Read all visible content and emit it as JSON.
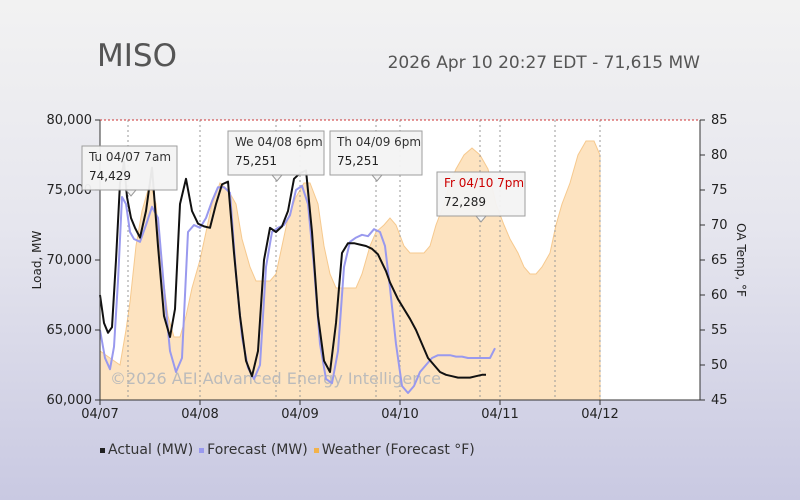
{
  "header": {
    "title": "MISO",
    "timestamp": "2026 Apr 10 20:27 EDT - 71,615 MW"
  },
  "colors": {
    "actual": "#111111",
    "forecast": "#9999ee",
    "weather_fill": "#fde3c0",
    "weather_line": "#f6c98e",
    "legend_actual": "#222222",
    "legend_forecast": "#9999ee",
    "legend_weather": "#f2b24a",
    "tooltip_red": "#cc0000"
  },
  "chart_data": {
    "type": "line",
    "xlabel": "",
    "ylabel": "Load, MW",
    "y2label": "OA Temp, °F",
    "xlim_days": [
      0,
      6
    ],
    "ylim": [
      60000,
      80000
    ],
    "y2lim": [
      45,
      85
    ],
    "x_ticks": [
      "04/07",
      "04/08",
      "04/09",
      "04/10",
      "04/11",
      "04/12"
    ],
    "y_ticks": [
      "60,000",
      "65,000",
      "70,000",
      "75,000",
      "80,000"
    ],
    "y2_ticks": [
      "45",
      "50",
      "55",
      "60",
      "65",
      "70",
      "75",
      "80",
      "85"
    ],
    "grid": "dashed vertical",
    "watermark": "©2026 AEI Advanced Energy Intelligence",
    "series": [
      {
        "name": "Actual (MW)",
        "x": [
          0,
          0.04,
          0.08,
          0.12,
          0.16,
          0.2,
          0.24,
          0.27,
          0.31,
          0.35,
          0.4,
          0.46,
          0.52,
          0.58,
          0.64,
          0.7,
          0.75,
          0.8,
          0.86,
          0.92,
          0.98,
          1.04,
          1.1,
          1.16,
          1.22,
          1.28,
          1.34,
          1.4,
          1.46,
          1.52,
          1.58,
          1.64,
          1.7,
          1.76,
          1.82,
          1.88,
          1.94,
          2.0,
          2.06,
          2.12,
          2.18,
          2.24,
          2.3,
          2.36,
          2.42,
          2.48,
          2.54,
          2.6,
          2.66,
          2.72,
          2.78,
          2.82,
          2.86,
          2.9,
          2.94,
          2.98,
          3.04,
          3.1,
          3.16,
          3.22,
          3.28,
          3.34,
          3.4,
          3.46,
          3.52,
          3.58,
          3.64,
          3.7,
          3.76,
          3.82,
          3.86
        ],
        "values": [
          67500,
          65500,
          64800,
          65200,
          70000,
          75500,
          77000,
          74500,
          73000,
          72300,
          71600,
          73500,
          76600,
          71000,
          66000,
          64500,
          66500,
          74000,
          75800,
          73500,
          72600,
          72400,
          72300,
          74000,
          75400,
          75600,
          70500,
          66000,
          62800,
          61700,
          63500,
          70000,
          72300,
          72000,
          72400,
          73500,
          75800,
          76200,
          76400,
          72000,
          66000,
          62800,
          62000,
          65500,
          70500,
          71200,
          71200,
          71100,
          71000,
          70800,
          70400,
          69800,
          69200,
          68400,
          67800,
          67200,
          66500,
          65800,
          65000,
          64000,
          63000,
          62500,
          62000,
          61800,
          61700,
          61600,
          61600,
          61600,
          61700,
          61800,
          61800
        ]
      },
      {
        "name": "Forecast (MW)",
        "x": [
          0,
          0.05,
          0.1,
          0.14,
          0.18,
          0.22,
          0.26,
          0.3,
          0.34,
          0.4,
          0.46,
          0.52,
          0.58,
          0.64,
          0.7,
          0.76,
          0.82,
          0.88,
          0.94,
          1.0,
          1.06,
          1.12,
          1.18,
          1.24,
          1.3,
          1.36,
          1.42,
          1.48,
          1.54,
          1.6,
          1.66,
          1.72,
          1.78,
          1.84,
          1.9,
          1.96,
          2.02,
          2.08,
          2.14,
          2.2,
          2.26,
          2.32,
          2.38,
          2.44,
          2.5,
          2.56,
          2.62,
          2.68,
          2.74,
          2.8,
          2.85,
          2.9,
          2.96,
          3.02,
          3.08,
          3.14,
          3.2,
          3.26,
          3.32,
          3.38,
          3.44,
          3.5,
          3.56,
          3.62,
          3.68,
          3.74,
          3.8,
          3.86,
          3.9,
          3.95
        ],
        "values": [
          65000,
          63000,
          62200,
          63800,
          68500,
          74500,
          74000,
          72000,
          71500,
          71300,
          72500,
          73800,
          73000,
          68000,
          63500,
          62000,
          63000,
          72000,
          72500,
          72300,
          73000,
          74200,
          75200,
          75200,
          74800,
          69000,
          64500,
          62300,
          61500,
          62500,
          69500,
          72000,
          72300,
          72500,
          73200,
          75000,
          75300,
          74000,
          69500,
          64000,
          61500,
          61200,
          63500,
          69500,
          71300,
          71600,
          71800,
          71700,
          72200,
          72000,
          71000,
          68000,
          64000,
          61000,
          60500,
          61000,
          62000,
          62500,
          63000,
          63200,
          63200,
          63200,
          63100,
          63100,
          63000,
          63000,
          63000,
          63000,
          63000,
          63700
        ]
      },
      {
        "name": "Weather (Forecast °F)",
        "axis": "y2",
        "x": [
          0,
          0.1,
          0.2,
          0.26,
          0.3,
          0.36,
          0.42,
          0.5,
          0.56,
          0.6,
          0.68,
          0.74,
          0.8,
          0.86,
          0.92,
          1.0,
          1.06,
          1.12,
          1.2,
          1.28,
          1.36,
          1.42,
          1.5,
          1.56,
          1.62,
          1.7,
          1.76,
          1.82,
          1.88,
          1.96,
          2.04,
          2.1,
          2.18,
          2.24,
          2.3,
          2.36,
          2.42,
          2.5,
          2.56,
          2.62,
          2.7,
          2.76,
          2.84,
          2.9,
          2.96,
          3.04,
          3.1,
          3.18,
          3.24,
          3.3,
          3.36,
          3.44,
          3.5,
          3.56,
          3.64,
          3.72,
          3.8,
          3.88,
          3.96,
          4.04,
          4.1,
          4.18,
          4.24,
          4.3,
          4.36,
          4.42,
          4.5,
          4.56,
          4.62,
          4.7,
          4.78,
          4.86,
          4.94,
          5.0
        ],
        "values": [
          52,
          51,
          50,
          55,
          59,
          67,
          72,
          76,
          73,
          66,
          57,
          54,
          54,
          57,
          61,
          65,
          69,
          73,
          76,
          75,
          73,
          68,
          64,
          62,
          62,
          62,
          63,
          67,
          71,
          74,
          76,
          76,
          73,
          67,
          63,
          61,
          61,
          61,
          61,
          63,
          67,
          69,
          70,
          71,
          70,
          67,
          66,
          66,
          66,
          67,
          70,
          73,
          76,
          78,
          80,
          81,
          80,
          78,
          73,
          70,
          68,
          66,
          64,
          63,
          63,
          64,
          66,
          70,
          73,
          76,
          80,
          82,
          82,
          80
        ]
      }
    ],
    "annotations": [
      {
        "label": "Tu 04/07 7am",
        "value": "74,429"
      },
      {
        "label": "We 04/08 6pm",
        "value": "75,251"
      },
      {
        "label": "Th 04/09 6pm",
        "value": "75,251"
      },
      {
        "label": "Fr 04/10 7pm",
        "value": "72,289"
      }
    ]
  }
}
